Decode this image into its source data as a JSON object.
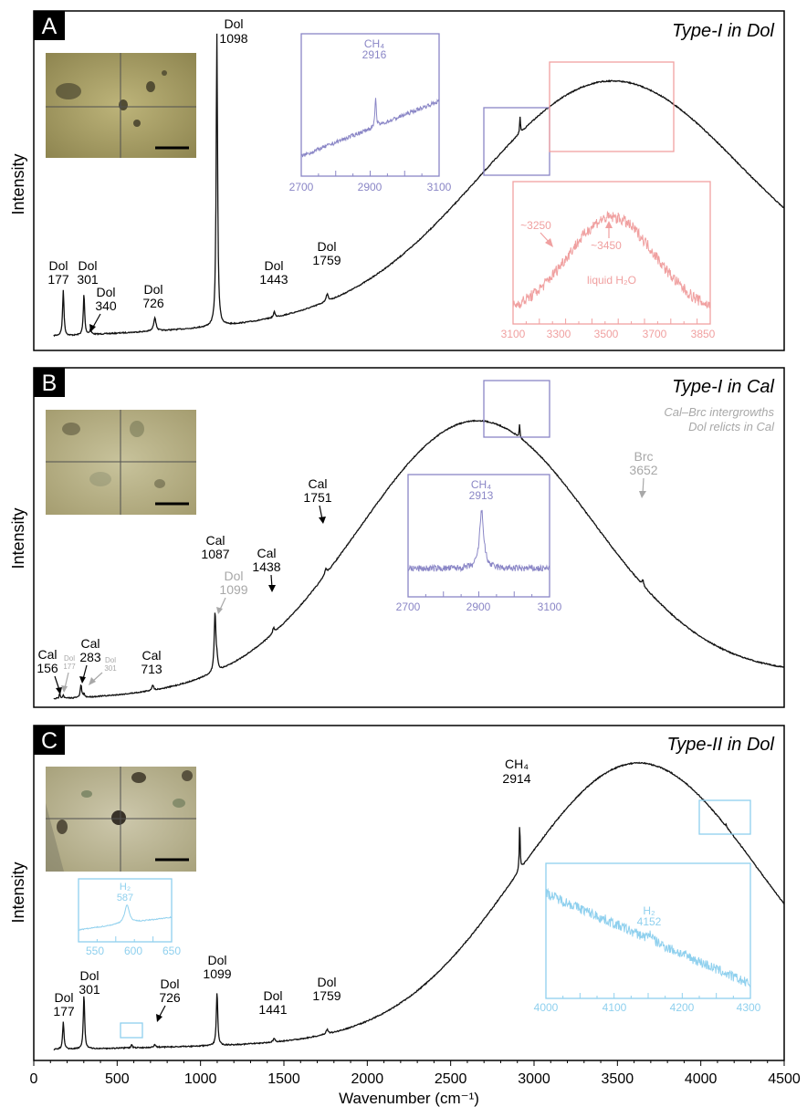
{
  "figure": {
    "xlabel": "Wavenumber (cm⁻¹)",
    "ylabel": "Intensity",
    "x_range": [
      0,
      4500
    ],
    "x_ticks": [
      0,
      500,
      1000,
      1500,
      2000,
      2500,
      3000,
      3500,
      4000,
      4500
    ]
  },
  "chart_data": [
    {
      "type": "line",
      "panel": "A",
      "title": "Type-I in Dol",
      "ylabel": "Intensity",
      "xlim": [
        0,
        4500
      ],
      "peaks": [
        {
          "mineral": "Dol",
          "wavenumber": "177"
        },
        {
          "mineral": "Dol",
          "wavenumber": "301"
        },
        {
          "mineral": "Dol",
          "wavenumber": "340"
        },
        {
          "mineral": "Dol",
          "wavenumber": "726"
        },
        {
          "mineral": "Dol",
          "wavenumber": "1098"
        },
        {
          "mineral": "Dol",
          "wavenumber": "1443"
        },
        {
          "mineral": "Dol",
          "wavenumber": "1759"
        }
      ],
      "insets": [
        {
          "label": "CH₄",
          "value": "2916",
          "xlim": [
            2700,
            3100
          ],
          "ticks": [
            "2700",
            "2900",
            "3100"
          ],
          "color": "#8a86c6"
        },
        {
          "annotations": [
            "~3250",
            "~3450",
            "liquid H₂O"
          ],
          "xlim": [
            3100,
            3850
          ],
          "ticks": [
            "3100",
            "3300",
            "3500",
            "3700",
            "3850"
          ],
          "color": "#f0a0a0"
        }
      ]
    },
    {
      "type": "line",
      "panel": "B",
      "title": "Type-I in Cal",
      "subtitle": [
        "Cal–Brc intergrowths",
        "Dol relicts in Cal"
      ],
      "ylabel": "Intensity",
      "xlim": [
        0,
        4500
      ],
      "peaks": [
        {
          "mineral": "Cal",
          "wavenumber": "156"
        },
        {
          "mineral": "Dol",
          "wavenumber": "177"
        },
        {
          "mineral": "Cal",
          "wavenumber": "283"
        },
        {
          "mineral": "Dol",
          "wavenumber": "301"
        },
        {
          "mineral": "Cal",
          "wavenumber": "713"
        },
        {
          "mineral": "Cal",
          "wavenumber": "1087"
        },
        {
          "mineral": "Dol",
          "wavenumber": "1099"
        },
        {
          "mineral": "Cal",
          "wavenumber": "1438"
        },
        {
          "mineral": "Cal",
          "wavenumber": "1751"
        },
        {
          "mineral": "Brc",
          "wavenumber": "3652"
        }
      ],
      "insets": [
        {
          "label": "CH₄",
          "value": "2913",
          "xlim": [
            2700,
            3100
          ],
          "ticks": [
            "2700",
            "2900",
            "3100"
          ],
          "color": "#8a86c6"
        }
      ]
    },
    {
      "type": "line",
      "panel": "C",
      "title": "Type-II in Dol",
      "ylabel": "Intensity",
      "xlim": [
        0,
        4500
      ],
      "peaks": [
        {
          "mineral": "Dol",
          "wavenumber": "177"
        },
        {
          "mineral": "Dol",
          "wavenumber": "301"
        },
        {
          "mineral": "Dol",
          "wavenumber": "726"
        },
        {
          "mineral": "Dol",
          "wavenumber": "1099"
        },
        {
          "mineral": "Dol",
          "wavenumber": "1441"
        },
        {
          "mineral": "Dol",
          "wavenumber": "1759"
        },
        {
          "mineral": "CH₄",
          "wavenumber": "2914"
        }
      ],
      "insets": [
        {
          "label": "H₂",
          "value": "587",
          "xlim": [
            520,
            650
          ],
          "ticks": [
            "550",
            "600",
            "650"
          ],
          "color": "#8fd0ee"
        },
        {
          "label": "H₂",
          "value": "4152",
          "xlim": [
            4000,
            4300
          ],
          "ticks": [
            "4000",
            "4100",
            "4200",
            "4300"
          ],
          "color": "#8fd0ee"
        }
      ]
    }
  ],
  "colors": {
    "spectrum": "#111111",
    "inset_ch4": "#8a86c6",
    "inset_water": "#f0a0a0",
    "inset_h2": "#8fd0ee",
    "relict_gray": "#a8a8a8",
    "photo_a": "#a89e62",
    "photo_b": "#b2ac80",
    "photo_c": "#b8b292"
  }
}
